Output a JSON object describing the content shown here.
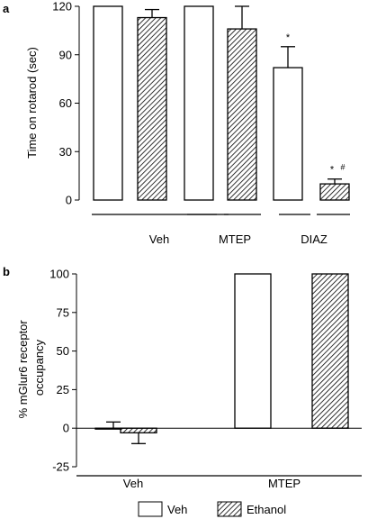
{
  "chart_data": [
    {
      "panel": "a",
      "type": "bar",
      "ylabel": "Time on rotarod (sec)",
      "ylim": [
        0,
        120
      ],
      "yticks": [
        0,
        30,
        60,
        90,
        120
      ],
      "categories": [
        "Veh",
        "MTEP",
        "DIAZ"
      ],
      "series": [
        {
          "name": "Veh",
          "pattern": "open",
          "values": [
            120,
            120,
            82
          ],
          "errors": [
            0,
            0,
            13
          ]
        },
        {
          "name": "Ethanol",
          "pattern": "hatched",
          "values": [
            113,
            106,
            10
          ],
          "errors": [
            5,
            14,
            3
          ]
        }
      ],
      "annotations": [
        {
          "category": "DIAZ",
          "series": "Veh",
          "text": "*"
        },
        {
          "category": "DIAZ",
          "series": "Ethanol",
          "text": "*",
          "sup": "#"
        }
      ]
    },
    {
      "panel": "b",
      "type": "bar",
      "ylabel": "% mGlur6 receptor occupancy",
      "ylabel_lines": [
        "% mGlur6 receptor",
        "occupancy"
      ],
      "ylim": [
        -25,
        100
      ],
      "yticks": [
        -25,
        0,
        25,
        50,
        75,
        100
      ],
      "categories": [
        "Veh",
        "MTEP"
      ],
      "series": [
        {
          "name": "Veh",
          "pattern": "open",
          "values": [
            0,
            100
          ],
          "errors": [
            4,
            0
          ]
        },
        {
          "name": "Ethanol",
          "pattern": "hatched",
          "values": [
            -3,
            100
          ],
          "errors": [
            7,
            0
          ]
        }
      ]
    }
  ],
  "legend": {
    "items": [
      {
        "label": "Veh",
        "pattern": "open"
      },
      {
        "label": "Ethanol",
        "pattern": "hatched"
      }
    ]
  }
}
